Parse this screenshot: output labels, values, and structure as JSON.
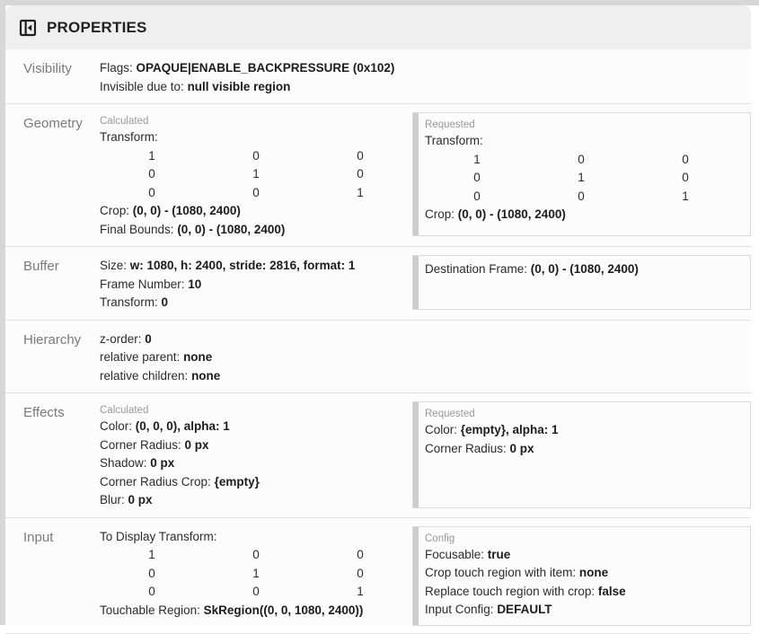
{
  "header": {
    "title": "PROPERTIES",
    "icon": "left-panel-close-icon"
  },
  "colors": {
    "frame": "#d7d7d7",
    "header_bg": "#efefef",
    "panel_bg": "#fcfcfc",
    "divider": "#e2e2e2",
    "box_border": "#dadada",
    "box_strip": "#cdcdcd",
    "caption_text": "#989898",
    "section_label_text": "#7a7a7a",
    "body_text": "#2b2b2b"
  },
  "sections": [
    {
      "id": "visibility",
      "label": "Visibility",
      "left": [
        {
          "type": "row",
          "segs": [
            {
              "t": "Flags: "
            },
            {
              "t": "OPAQUE|ENABLE_BACKPRESSURE (0x102)",
              "b": true
            }
          ]
        },
        {
          "type": "row",
          "segs": [
            {
              "t": "Invisible due to: "
            },
            {
              "t": "null visible region",
              "b": true
            }
          ]
        }
      ]
    },
    {
      "id": "geometry",
      "label": "Geometry",
      "left": [
        {
          "type": "caption",
          "text": "Calculated"
        },
        {
          "type": "row",
          "segs": [
            {
              "t": "Transform:"
            }
          ]
        },
        {
          "type": "matrix",
          "rows": [
            [
              "1",
              "0",
              "0"
            ],
            [
              "0",
              "1",
              "0"
            ],
            [
              "0",
              "0",
              "1"
            ]
          ]
        },
        {
          "type": "row",
          "segs": [
            {
              "t": "Crop: "
            },
            {
              "t": "(0, 0) - (1080, 2400)",
              "b": true
            }
          ]
        },
        {
          "type": "row",
          "segs": [
            {
              "t": "Final Bounds: "
            },
            {
              "t": "(0, 0) - (1080, 2400)",
              "b": true
            }
          ]
        }
      ],
      "box": [
        {
          "type": "caption",
          "text": "Requested"
        },
        {
          "type": "row",
          "segs": [
            {
              "t": "Transform:"
            }
          ]
        },
        {
          "type": "matrix",
          "rows": [
            [
              "1",
              "0",
              "0"
            ],
            [
              "0",
              "1",
              "0"
            ],
            [
              "0",
              "0",
              "1"
            ]
          ]
        },
        {
          "type": "row",
          "segs": [
            {
              "t": "Crop: "
            },
            {
              "t": "(0, 0) - (1080, 2400)",
              "b": true
            }
          ]
        }
      ]
    },
    {
      "id": "buffer",
      "label": "Buffer",
      "left": [
        {
          "type": "row",
          "segs": [
            {
              "t": "Size: "
            },
            {
              "t": "w: 1080, h: 2400, stride: 2816, format: 1",
              "b": true
            }
          ]
        },
        {
          "type": "row",
          "segs": [
            {
              "t": "Frame Number: "
            },
            {
              "t": "10",
              "b": true
            }
          ]
        },
        {
          "type": "row",
          "segs": [
            {
              "t": "Transform: "
            },
            {
              "t": "0",
              "b": true
            }
          ]
        }
      ],
      "box": [
        {
          "type": "row",
          "segs": [
            {
              "t": "Destination Frame: "
            },
            {
              "t": "(0, 0) - (1080, 2400)",
              "b": true
            }
          ]
        }
      ]
    },
    {
      "id": "hierarchy",
      "label": "Hierarchy",
      "left": [
        {
          "type": "row",
          "segs": [
            {
              "t": "z-order: "
            },
            {
              "t": "0",
              "b": true
            }
          ]
        },
        {
          "type": "row",
          "segs": [
            {
              "t": "relative parent: "
            },
            {
              "t": "none",
              "b": true
            }
          ]
        },
        {
          "type": "row",
          "segs": [
            {
              "t": "relative children: "
            },
            {
              "t": "none",
              "b": true
            }
          ]
        }
      ]
    },
    {
      "id": "effects",
      "label": "Effects",
      "left": [
        {
          "type": "caption",
          "text": "Calculated"
        },
        {
          "type": "row",
          "segs": [
            {
              "t": "Color: "
            },
            {
              "t": "(0, 0, 0), alpha: 1",
              "b": true
            }
          ]
        },
        {
          "type": "row",
          "segs": [
            {
              "t": "Corner Radius: "
            },
            {
              "t": "0 px",
              "b": true
            }
          ]
        },
        {
          "type": "row",
          "segs": [
            {
              "t": "Shadow: "
            },
            {
              "t": "0 px",
              "b": true
            }
          ]
        },
        {
          "type": "row",
          "segs": [
            {
              "t": "Corner Radius Crop: "
            },
            {
              "t": "{empty}",
              "b": true
            }
          ]
        },
        {
          "type": "row",
          "segs": [
            {
              "t": "Blur: "
            },
            {
              "t": "0 px",
              "b": true
            }
          ]
        }
      ],
      "box": [
        {
          "type": "caption",
          "text": "Requested"
        },
        {
          "type": "row",
          "segs": [
            {
              "t": "Color: "
            },
            {
              "t": "{empty}, alpha: 1",
              "b": true
            }
          ]
        },
        {
          "type": "row",
          "segs": [
            {
              "t": "Corner Radius: "
            },
            {
              "t": "0 px",
              "b": true
            }
          ]
        }
      ]
    },
    {
      "id": "input",
      "label": "Input",
      "left": [
        {
          "type": "row",
          "segs": [
            {
              "t": "To Display Transform:"
            }
          ]
        },
        {
          "type": "matrix",
          "rows": [
            [
              "1",
              "0",
              "0"
            ],
            [
              "0",
              "1",
              "0"
            ],
            [
              "0",
              "0",
              "1"
            ]
          ]
        },
        {
          "type": "row",
          "segs": [
            {
              "t": "Touchable Region: "
            },
            {
              "t": "SkRegion((0, 0, 1080, 2400))",
              "b": true
            }
          ]
        }
      ],
      "box": [
        {
          "type": "caption",
          "text": "Config"
        },
        {
          "type": "row",
          "segs": [
            {
              "t": "Focusable: "
            },
            {
              "t": "true",
              "b": true
            }
          ]
        },
        {
          "type": "row",
          "segs": [
            {
              "t": "Crop touch region with item: "
            },
            {
              "t": "none",
              "b": true
            }
          ]
        },
        {
          "type": "row",
          "segs": [
            {
              "t": "Replace touch region with crop: "
            },
            {
              "t": "false",
              "b": true
            }
          ]
        },
        {
          "type": "row",
          "segs": [
            {
              "t": "Input Config: "
            },
            {
              "t": "DEFAULT",
              "b": true
            }
          ]
        }
      ]
    }
  ]
}
